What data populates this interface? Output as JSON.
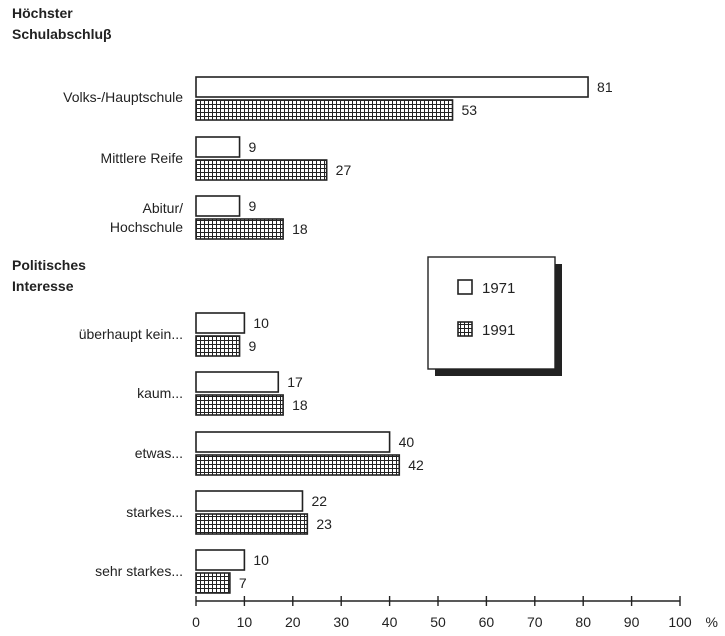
{
  "chart_data": {
    "type": "bar",
    "orientation": "horizontal",
    "unit": "%",
    "xlim": [
      0,
      100
    ],
    "xticks": [
      0,
      10,
      20,
      30,
      40,
      50,
      60,
      70,
      80,
      90,
      100
    ],
    "legend": {
      "placement": "right-middle",
      "entries": [
        {
          "name": "1971",
          "pattern": "empty"
        },
        {
          "name": "1991",
          "pattern": "grid"
        }
      ]
    },
    "groups": [
      {
        "title": [
          "Höchster",
          "Schulabschluβ"
        ],
        "categories": [
          {
            "label": [
              "Volks-/Hauptschule"
            ],
            "values": [
              81,
              53
            ]
          },
          {
            "label": [
              "Mittlere Reife"
            ],
            "values": [
              9,
              27
            ]
          },
          {
            "label": [
              "Abitur/",
              "Hochschule"
            ],
            "values": [
              9,
              18
            ]
          }
        ]
      },
      {
        "title": [
          "Politisches",
          "Interesse"
        ],
        "categories": [
          {
            "label": [
              "überhaupt kein..."
            ],
            "values": [
              10,
              9
            ]
          },
          {
            "label": [
              "kaum..."
            ],
            "values": [
              17,
              18
            ]
          },
          {
            "label": [
              "etwas..."
            ],
            "values": [
              40,
              42
            ]
          },
          {
            "label": [
              "starkes..."
            ],
            "values": [
              22,
              23
            ]
          },
          {
            "label": [
              "sehr starkes..."
            ],
            "values": [
              10,
              7
            ]
          }
        ]
      }
    ]
  }
}
